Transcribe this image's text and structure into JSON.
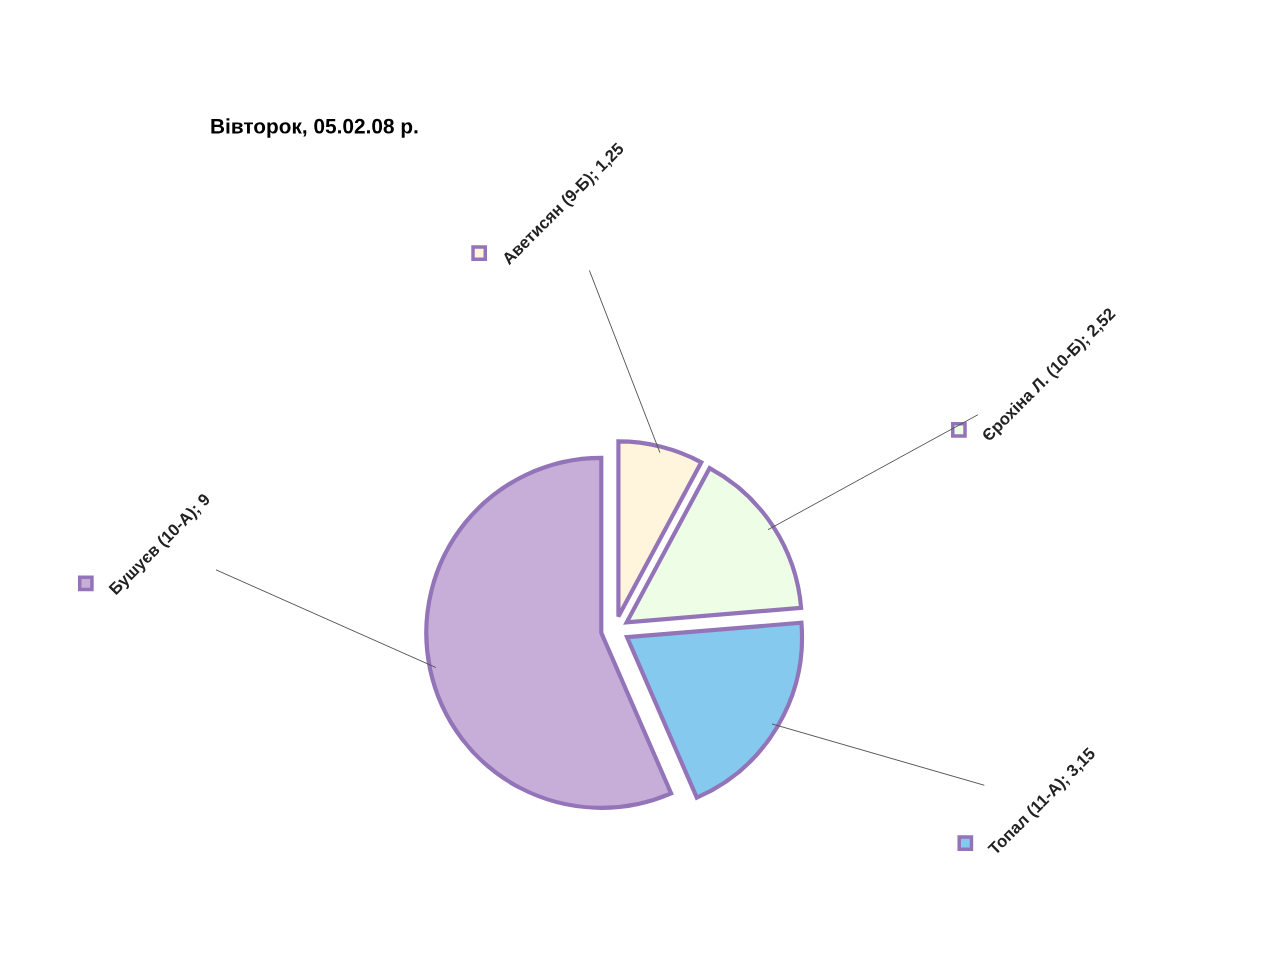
{
  "chart_data": {
    "type": "pie",
    "title": "Вівторок, 05.02.08 р.",
    "categories": [
      "Аветисян (9-Б)",
      "Єрохіна Л. (10-Б)",
      "Топал (11-А)",
      "Бушуєв (10-А)"
    ],
    "values": [
      1.25,
      2.52,
      3.15,
      9
    ],
    "colors": [
      "#fff4dc",
      "#eefde6",
      "#86c9ef",
      "#c6aed8"
    ],
    "value_labels": [
      "1,25",
      "2,52",
      "3,15",
      "9"
    ],
    "legend": false
  }
}
